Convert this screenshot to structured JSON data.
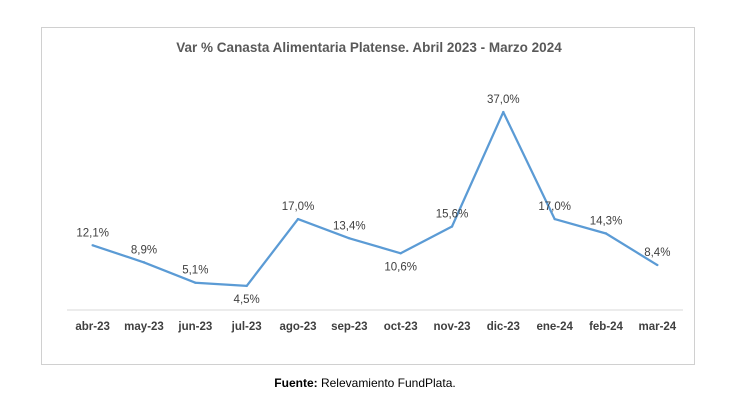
{
  "chart_data": {
    "type": "line",
    "title": "Var % Canasta Alimentaria Platense.  Abril 2023 - Marzo 2024",
    "categories": [
      "abr-23",
      "may-23",
      "jun-23",
      "jul-23",
      "ago-23",
      "sep-23",
      "oct-23",
      "nov-23",
      "dic-23",
      "ene-24",
      "feb-24",
      "mar-24"
    ],
    "values": [
      12.1,
      8.9,
      5.1,
      4.5,
      17.0,
      13.4,
      10.6,
      15.6,
      37.0,
      17.0,
      14.3,
      8.4
    ],
    "data_labels": [
      "12,1%",
      "8,9%",
      "5,1%",
      "4,5%",
      "17,0%",
      "13,4%",
      "10,6%",
      "15,6%",
      "37,0%",
      "17,0%",
      "14,3%",
      "8,4%"
    ],
    "xlabel": "",
    "ylabel": "",
    "grid": false,
    "y_axis_visible": false,
    "line_color": "#5B9BD5"
  },
  "source": {
    "label": "Fuente:",
    "text": " Relevamiento FundPlata."
  }
}
